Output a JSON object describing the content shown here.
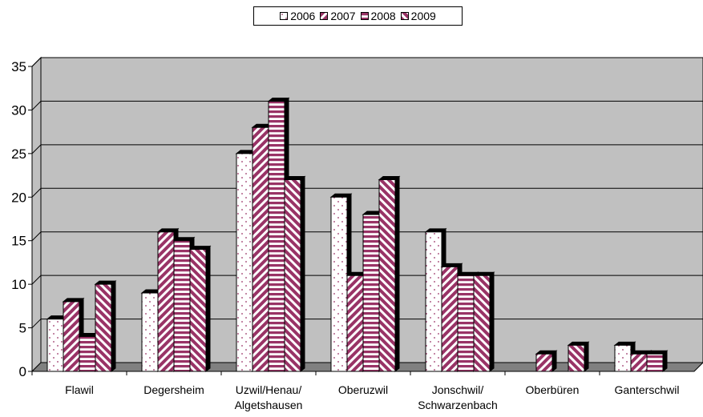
{
  "chart_data": {
    "type": "bar",
    "categories": [
      [
        "Flawil"
      ],
      [
        "Degersheim"
      ],
      [
        "Uzwil/Henau/",
        "Algetshausen"
      ],
      [
        "Oberuzwil"
      ],
      [
        "Jonschwil/",
        "Schwarzenbach"
      ],
      [
        "Oberbüren"
      ],
      [
        "Ganterschwil"
      ]
    ],
    "series": [
      {
        "name": "2006",
        "values": [
          6,
          9,
          25,
          20,
          16,
          0,
          3
        ],
        "pattern": "dots",
        "color": "#ffffff"
      },
      {
        "name": "2007",
        "values": [
          8,
          16,
          28,
          11,
          12,
          2,
          2
        ],
        "pattern": "diag-right",
        "color": "#993366"
      },
      {
        "name": "2008",
        "values": [
          4,
          15,
          31,
          18,
          11,
          0,
          2
        ],
        "pattern": "horizontal",
        "color": "#993366"
      },
      {
        "name": "2009",
        "values": [
          10,
          14,
          22,
          22,
          11,
          3,
          0
        ],
        "pattern": "diag-left",
        "color": "#993366"
      }
    ],
    "ylim": [
      0,
      35
    ],
    "yticks": [
      0,
      5,
      10,
      15,
      20,
      25,
      30,
      35
    ],
    "grid": true,
    "legend": "top",
    "wall_color": "#c0c0c0",
    "floor_color": "#808080"
  }
}
